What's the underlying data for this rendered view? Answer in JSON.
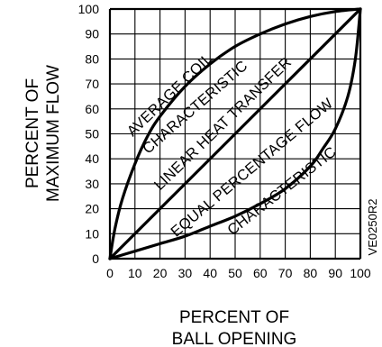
{
  "chart_data": {
    "type": "line",
    "xlabel": [
      "PERCENT OF",
      "BALL OPENING"
    ],
    "ylabel": [
      "PERCENT OF",
      "MAXIMUM FLOW"
    ],
    "xlim": [
      0,
      100
    ],
    "ylim": [
      0,
      100
    ],
    "x_ticks": [
      0,
      10,
      20,
      30,
      40,
      50,
      60,
      70,
      80,
      90,
      100
    ],
    "y_ticks": [
      0,
      10,
      20,
      30,
      40,
      50,
      60,
      70,
      80,
      90,
      100
    ],
    "grid": true,
    "series": [
      {
        "key": "coil",
        "label_lines": [
          "AVERAGE COIL",
          "CHARACTERISTIC"
        ],
        "x": [
          0,
          2,
          5,
          10,
          15,
          20,
          30,
          40,
          50,
          60,
          70,
          80,
          90,
          100
        ],
        "y": [
          0,
          12,
          24,
          38,
          49,
          57,
          69,
          78,
          85,
          90,
          94,
          97,
          99,
          100
        ]
      },
      {
        "key": "linear",
        "label_lines": [
          "LINEAR HEAT TRANSFER"
        ],
        "x": [
          0,
          100
        ],
        "y": [
          0,
          100
        ]
      },
      {
        "key": "equal",
        "label_lines": [
          "EQUAL PERCENTAGE FLOW",
          "CHARACTERISTIC"
        ],
        "x": [
          0,
          10,
          20,
          30,
          40,
          50,
          60,
          70,
          80,
          85,
          90,
          95,
          98,
          100
        ],
        "y": [
          0,
          3,
          6,
          9,
          13,
          17,
          22,
          28,
          37,
          44,
          52,
          65,
          80,
          100
        ]
      }
    ],
    "annotation": "VE0250R2"
  }
}
